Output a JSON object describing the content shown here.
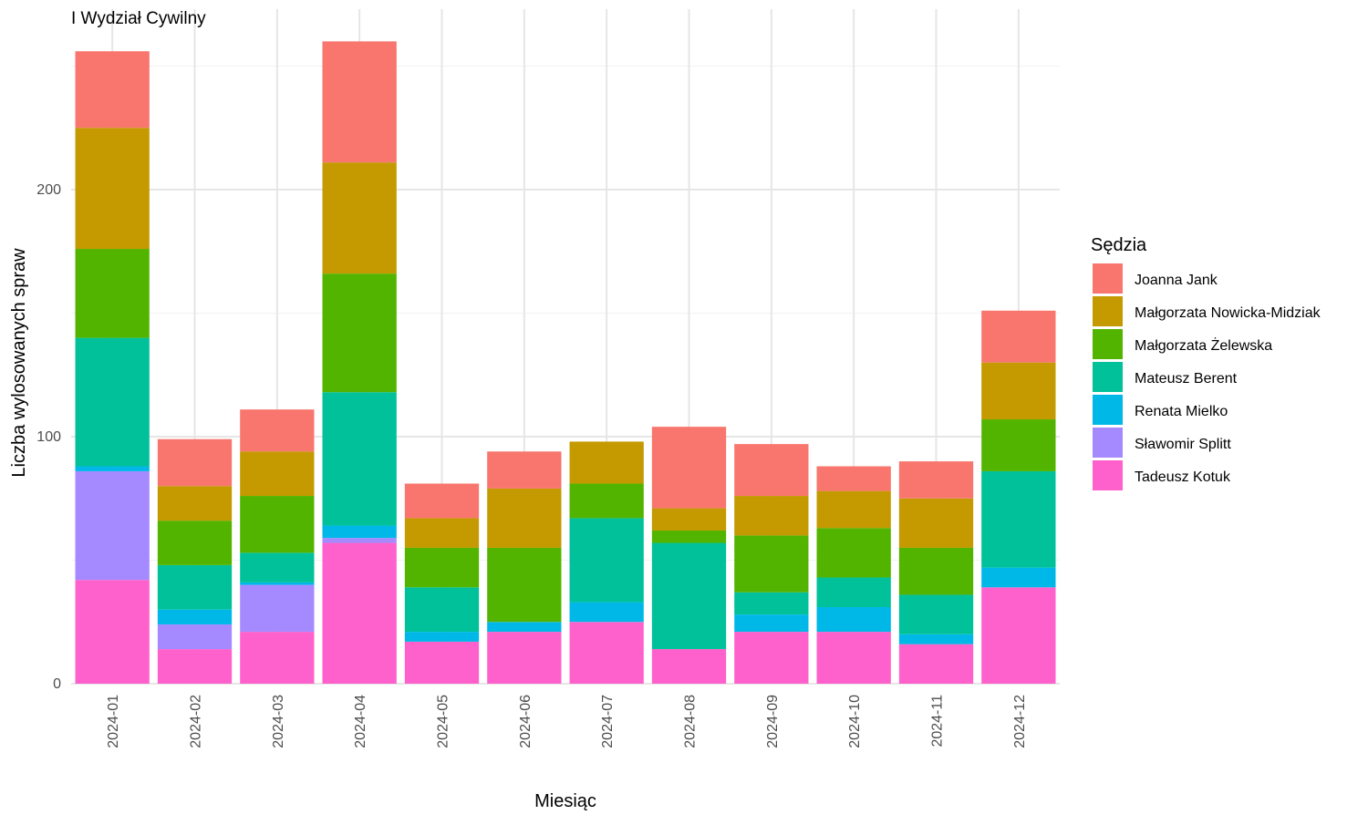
{
  "chart_data": {
    "type": "bar",
    "stacked": true,
    "title": "I Wydział Cywilny",
    "xlabel": "Miesiąc",
    "ylabel": "Liczba wylosowanych spraw",
    "ylim": [
      0,
      270
    ],
    "yticks": [
      0,
      100,
      200
    ],
    "grid": true,
    "legend_title": "Sędzia",
    "legend_position": "right",
    "categories": [
      "2024-01",
      "2024-02",
      "2024-03",
      "2024-04",
      "2024-05",
      "2024-06",
      "2024-07",
      "2024-08",
      "2024-09",
      "2024-10",
      "2024-11",
      "2024-12"
    ],
    "series": [
      {
        "name": "Tadeusz Kotuk",
        "color": "#FF61CC",
        "values": [
          42,
          14,
          21,
          57,
          17,
          21,
          25,
          14,
          21,
          21,
          16,
          39
        ]
      },
      {
        "name": "Sławomir Splitt",
        "color": "#A58AFF",
        "values": [
          44,
          10,
          19,
          2,
          0,
          0,
          0,
          0,
          0,
          0,
          0,
          0
        ]
      },
      {
        "name": "Renata Mielko",
        "color": "#00B8E7",
        "values": [
          2,
          6,
          1,
          5,
          4,
          4,
          8,
          0,
          7,
          10,
          4,
          8
        ]
      },
      {
        "name": "Mateusz Berent",
        "color": "#00C19A",
        "values": [
          52,
          18,
          12,
          54,
          18,
          0,
          34,
          43,
          9,
          12,
          16,
          39
        ]
      },
      {
        "name": "Małgorzata Żelewska",
        "color": "#53B400",
        "values": [
          36,
          18,
          23,
          48,
          16,
          30,
          14,
          5,
          23,
          20,
          19,
          21
        ]
      },
      {
        "name": "Małgorzata Nowicka-Midziak",
        "color": "#C49A00",
        "values": [
          49,
          14,
          18,
          45,
          12,
          24,
          17,
          9,
          16,
          15,
          20,
          23
        ]
      },
      {
        "name": "Joanna Jank",
        "color": "#F8766D",
        "values": [
          31,
          19,
          17,
          49,
          14,
          15,
          0,
          33,
          21,
          10,
          15,
          21
        ]
      }
    ],
    "legend_order": [
      "Joanna Jank",
      "Małgorzata Nowicka-Midziak",
      "Małgorzata Żelewska",
      "Mateusz Berent",
      "Renata Mielko",
      "Sławomir Splitt",
      "Tadeusz Kotuk"
    ]
  }
}
